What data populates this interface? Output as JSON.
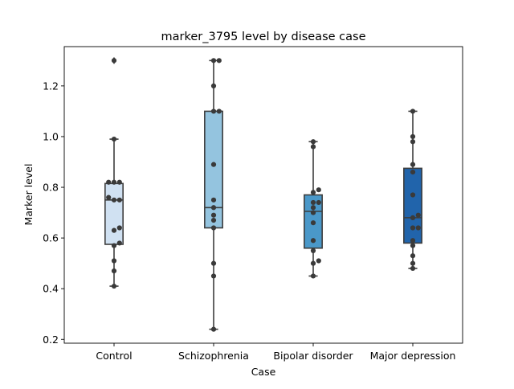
{
  "chart_data": {
    "type": "box",
    "title": "marker_3795 level by disease case",
    "xlabel": "Case",
    "ylabel": "Marker level",
    "categories": [
      "Control",
      "Schizophrenia",
      "Bipolar disorder",
      "Major depression"
    ],
    "ylim": [
      0.185,
      1.355
    ],
    "yticks": [
      0.2,
      0.4,
      0.6,
      0.8,
      1.0,
      1.2
    ],
    "ytick_labels": [
      "0.2",
      "0.4",
      "0.6",
      "0.8",
      "1.0",
      "1.2"
    ],
    "grid": false,
    "boxes": [
      {
        "category": "Control",
        "whisker_low": 0.41,
        "q1": 0.575,
        "median": 0.75,
        "q3": 0.815,
        "whisker_high": 0.99,
        "fliers": [
          1.3
        ],
        "color": "#d0e1f2"
      },
      {
        "category": "Schizophrenia",
        "whisker_low": 0.24,
        "q1": 0.64,
        "median": 0.72,
        "q3": 1.1,
        "whisker_high": 1.3,
        "fliers": [],
        "color": "#94c4df"
      },
      {
        "category": "Bipolar disorder",
        "whisker_low": 0.45,
        "q1": 0.56,
        "median": 0.705,
        "q3": 0.77,
        "whisker_high": 0.98,
        "fliers": [],
        "color": "#4a98c9"
      },
      {
        "category": "Major depression",
        "whisker_low": 0.48,
        "q1": 0.58,
        "median": 0.68,
        "q3": 0.875,
        "whisker_high": 1.1,
        "fliers": [],
        "color": "#2164ab"
      }
    ],
    "points": [
      {
        "category": "Control",
        "values": [
          1.3,
          0.99,
          0.82,
          0.82,
          0.82,
          0.76,
          0.75,
          0.75,
          0.64,
          0.63,
          0.58,
          0.57,
          0.51,
          0.47,
          0.41
        ]
      },
      {
        "category": "Schizophrenia",
        "values": [
          1.3,
          1.3,
          1.2,
          1.1,
          1.1,
          0.89,
          0.75,
          0.72,
          0.69,
          0.67,
          0.64,
          0.5,
          0.45,
          0.24
        ]
      },
      {
        "category": "Bipolar disorder",
        "values": [
          0.98,
          0.96,
          0.79,
          0.78,
          0.74,
          0.74,
          0.72,
          0.7,
          0.66,
          0.59,
          0.55,
          0.51,
          0.5,
          0.45
        ]
      },
      {
        "category": "Major depression",
        "values": [
          1.1,
          1.0,
          0.98,
          0.89,
          0.86,
          0.77,
          0.69,
          0.68,
          0.64,
          0.64,
          0.59,
          0.57,
          0.53,
          0.5,
          0.48
        ]
      }
    ],
    "point_color": "#3a3a3a",
    "line_color": "#3d3d3d"
  }
}
